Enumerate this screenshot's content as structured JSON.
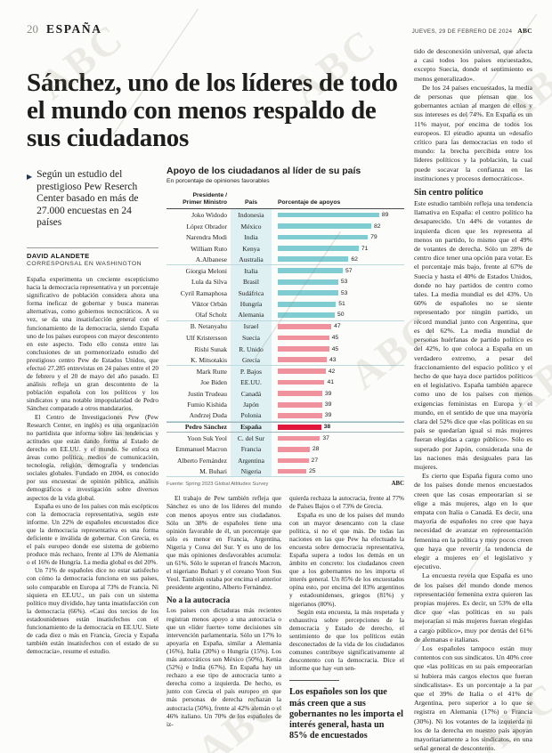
{
  "watermark": "ABC",
  "header": {
    "page_number": "20",
    "section": "ESPAÑA",
    "date": "JUEVES, 29 DE FEBRERO DE 2024",
    "brand": "ABC"
  },
  "article": {
    "headline": "Sánchez, uno de los líderes de todo el mundo con menos respaldo de sus ciudadanos",
    "kicker": "Según un estudio del prestigioso Pew Reserch Center basado en más de 27.000 encuestas en 24 países",
    "byline": "DAVID ALANDETE",
    "byline_role": "CORRESPONSAL EN WASHINGTON",
    "pull_quote": "Los españoles son los que más creen que a sus gobernantes no les importa el interés general, hasta un 85% de encuestados",
    "columns": [
      {
        "blocks": [
          {
            "type": "p",
            "indent": false,
            "text": "España experimenta un creciente escepticismo hacia la democracia representativa y un porcentaje significativo de población considera ahora una forma ineficaz de gobernar y busca maneras alternativas, como gobiernos tecnocráticos. A su vez, se da una insatisfacción general con el funcionamiento de la democracia, siendo España uno de los países europeos con mayor descontento en este aspecto. Todo ello consta entre las conclusiones de un pormenorizado estudio del prestigioso centro Pew de Estados Unidos, que efectuó 27.285 entrevistas en 24 países entre el 20 de febrero y el 20 de mayo del año pasado. El análisis refleja un gran descontento de la población española con los políticos y los sindicatos y una notable impopularidad de Pedro Sánchez comparado a otros mandatarios."
          },
          {
            "type": "p",
            "text": "El Centro de Investigaciones Pew (Pew Research Center, en inglés) es una organización no partidista que informa sobre las tendencias y actitudes que están dando forma al Estado de derecho en EE.UU. y el mundo. Se enfoca en áreas como política, medios de comunicación, tecnología, religión, demografía y tendencias sociales globales. Fundado en 2004, es conocido por sus encuestas de opinión pública, análisis demográficos e investigación sobre diversos aspectos de la vida global."
          },
          {
            "type": "p",
            "text": "España es uno de los países con más escépticos con la democracia representativa, según este informe. Un 22% de españoles encuestados dice que la democracia representativa es una forma deficiente e inválida de gobernar. Con Grecia, es el país europeo donde ese sistema de gobierno produce más rechazo, frente al 13% de Alemania o el 16% de Hungría. La media global es del 20%."
          },
          {
            "type": "p",
            "text": "Un 71% de españoles dice no estar satisfecho con cómo la democracia funciona en sus países, solo comparable en Europa al 73% de Francia. Ni siquiera en EE.UU., un país con un sistema político muy dividido, hay tanta insatisfacción con la democracia (66%). «Casi dos tercios de los estadounidenses están insatisfechos con el funcionamiento de la democracia en EE.UU. Siete de cada diez o más en Francia, Grecia y España también están insatisfechos con el estado de su democracia», resume el estudio."
          }
        ]
      },
      {
        "blocks": [
          {
            "type": "p",
            "text": "El trabajo de Pew también refleja que Sánchez es uno de los líderes del mundo con menos apoyos entre sus ciudadanos. Sólo un 38% de españoles tiene una opinión favorable de él, un porcentaje que sólo es menor en Francia, Argentina, Nigeria y Corea del Sur. Y es uno de los que más opiniones desfavorables acumula: un 61%. Sólo le superan el francés Macron, el nigeriano Buhari y el coreano Yoon Sus Yeol. También estaba por encima el anterior presidente argentino, Alberto Fernández."
          },
          {
            "type": "h",
            "text": "No a la autocracia"
          },
          {
            "type": "p",
            "indent": false,
            "text": "Los países con dictaduras más recientes registran menos apoyo a una autocracia o que un «líder fuerte» tome decisiones sin intervención parlamentaria. Sólo un 17% lo apoyaría en España, similar a Alemania (16%), Italia (20%) o Hungría (15%). Los más autocráticos son México (50%), Kenia (52%) e India (67%). En España hay un rechazo a ese tipo de autocracia tanto a derecha como a izquierda. De hecho, es junto con Grecia el país europeo en que más personas de derecha rechazan la autocracia (50%), frente al 42% alemán o el 46% italiano. Un 70% de los españoles de iz-"
          }
        ]
      },
      {
        "blocks": [
          {
            "type": "p",
            "indent": false,
            "text": "quierda rechaza la autocracia, frente al 77% de Países Bajos o el 73% de Grecia."
          },
          {
            "type": "p",
            "text": "España es uno de los países del mundo con un mayor desencanto con la clase política, si no el que más. De todas las naciones en las que Pew ha efectuado la encuesta sobre democracia representativa, España supera a todos los demás en un ámbito en concreto: los ciudadanos creen que a los gobernantes no les importa el interés general. Un 85% de los encuestados opina esto, por encima del 83% argentinos y estadounidenses, griegos (81%) y nigerianos (80%)."
          },
          {
            "type": "p",
            "text": "Según esta encuesta, la más respetada y exhaustiva sobre percepciones de la democracia y Estado de derecho, el sentimiento de que los políticos están desconectados de la vida de los ciudadanos comunes contribuye significativamente al descontento con la democracia. Dice el informe que hay «un sen-"
          }
        ]
      },
      {
        "blocks": [
          {
            "type": "p",
            "indent": false,
            "text": "tido de desconexión universal, que afecta a casi todos los países encuestados, excepto Suecia, donde el sentimiento es menos generalizado»."
          },
          {
            "type": "p",
            "text": "De los 24 países encuestados, la media de personas que piensan que los gobernantes actúan al margen de ellos y sus intereses es del 74%. En España es un 11% mayor, por encima de todos los europeos. El estudio apunta un «desafío crítico para las democracias en todo el mundo: la brecha percibida entre los líderes políticos y la población, la cual puede socavar la confianza en las instituciones y procesos democráticos»."
          },
          {
            "type": "h",
            "text": "Sin centro político"
          },
          {
            "type": "p",
            "indent": false,
            "text": "Este estudio también refleja una tendencia llamativa en España: el centro político ha desaparecido. Un 44% de votantes de izquierda dicen que les representa al menos un partido, lo mismo que el 49% de votantes de derecha. Sólo un 28% de centro dice tener una opción para votar. Es el porcentaje más bajo, frente al 67% de Suecia y hasta el 40% de Estados Unidos, donde no hay partidos de centro como tales. La media mundial es del 43%. Un 60% de españoles no se siente representado por ningún partido, un récord mundial junto con Argentina, que es del 62%. La media mundial de personas huérfanas de partido político es del 42%, lo que coloca a España en un verdadero extremo, a pesar del fraccionamiento del espacio político y el hecho de que haya doce partidos políticos en el legislativo. España también aparece como uno de los países con menos exigencias feministas en Europa y el mundo, en el sentido de que una mayoría clara del 52% dice que «las políticas en su país se quedarían igual si más mujeres fueran elegidas a cargo público». Sólo es superado por Japón, considerada una de las naciones más desiguales para las mujeres."
          },
          {
            "type": "p",
            "text": "Es cierto que España figura como uno de los países donde menos encuestados creen que las cosas empeorarían si se elige a más mujeres, algo en lo que empata con Italia o Canadá. Es decir, una mayoría de españoles no cree que haya necesidad de avanzar en representación femenina en la política y muy pocos creen que haya que revertir la tendencia de elegir a mujeres en el legislativo y ejecutivo."
          },
          {
            "type": "p",
            "text": "La encuesta revela que España es uno de los países del mundo donde menos representación femenina extra quieren las propias mujeres. Es decir, un 53% de ella dice que «las políticas en su país mejorarían si más mujeres fueran elegidas a cargo público», muy por detrás del 61% de alemanas e italianas."
          },
          {
            "type": "p",
            "text": "Los españoles tampoco están muy contentos con sus sindicatos. Un 40% cree que «las políticas en su país empeorarían si hubiera más cargos electos que fueran sindicalistas». Es un porcentaje a la par que el 39% de Italia o el 41% de Argentina, pero superior a lo que se registra en Alemania (17%) o Francia (30%). Ni los votantes de la izquierda ni los de la derecha en nuestro país apoyan mayoritariamente a los sindicatos, en una señal general de descontento."
          }
        ]
      }
    ]
  },
  "colors": {
    "bar_teal": "#7fccd3",
    "bar_pink": "#f0929e",
    "bar_red": "#e0173a",
    "country_band": "#def0f2",
    "separator": "#bcd9dd"
  },
  "chart_data": {
    "type": "bar",
    "title": "Apoyo de los ciudadanos al líder de su país",
    "subtitle": "En porcentaje de opiniones favorables",
    "col_headers": [
      "Presidente /\nPrimer Ministro",
      "País",
      "Porcentaje de apoyos"
    ],
    "source": "Fuente: Spring 2023 Global Attitudes Survey",
    "credit": "ABC",
    "xlim": [
      0,
      100
    ],
    "categories": [
      "Indonesia",
      "México",
      "India",
      "Kenya",
      "Australia",
      "Italia",
      "Brasil",
      "Sudáfrica",
      "Hungría",
      "Alemania",
      "Israel",
      "Suecia",
      "R. Unido",
      "Grecia",
      "P. Bajos",
      "EE.UU.",
      "Canadá",
      "Japón",
      "Polonia",
      "España",
      "C. del Sur",
      "Francia",
      "Argentina",
      "Nigeria"
    ],
    "values": [
      89,
      82,
      79,
      71,
      62,
      57,
      53,
      53,
      51,
      50,
      47,
      45,
      45,
      43,
      42,
      41,
      39,
      39,
      39,
      38,
      37,
      28,
      27,
      25
    ],
    "rows": [
      {
        "leader": "Joko Widodo",
        "country": "Indonesia",
        "value": 89,
        "color": "teal"
      },
      {
        "leader": "López Obrador",
        "country": "México",
        "value": 82,
        "color": "teal"
      },
      {
        "leader": "Narendra Modi",
        "country": "India",
        "value": 79,
        "color": "teal"
      },
      {
        "leader": "William Ruto",
        "country": "Kenya",
        "value": 71,
        "color": "teal"
      },
      {
        "leader": "A.Albanese",
        "country": "Australia",
        "value": 62,
        "color": "teal",
        "group_end": true
      },
      {
        "leader": "Giorgia Meloni",
        "country": "Italia",
        "value": 57,
        "color": "teal"
      },
      {
        "leader": "Lula da Silva",
        "country": "Brasil",
        "value": 53,
        "color": "teal"
      },
      {
        "leader": "Cyril Ramaphosa",
        "country": "Sudáfrica",
        "value": 53,
        "color": "teal"
      },
      {
        "leader": "Viktor Orbán",
        "country": "Hungría",
        "value": 51,
        "color": "teal"
      },
      {
        "leader": "Olaf Scholz",
        "country": "Alemania",
        "value": 50,
        "color": "teal",
        "group_end": true
      },
      {
        "leader": "B. Netanyahu",
        "country": "Israel",
        "value": 47,
        "color": "pink"
      },
      {
        "leader": "Ulf Kristersson",
        "country": "Suecia",
        "value": 45,
        "color": "pink"
      },
      {
        "leader": "Rishi Sunak",
        "country": "R. Unido",
        "value": 45,
        "color": "pink"
      },
      {
        "leader": "K. Mitsotakis",
        "country": "Grecia",
        "value": 43,
        "color": "pink",
        "group_end": true
      },
      {
        "leader": "Mark Rutte",
        "country": "P. Bajos",
        "value": 42,
        "color": "pink"
      },
      {
        "leader": "Joe Biden",
        "country": "EE.UU.",
        "value": 41,
        "color": "pink"
      },
      {
        "leader": "Justin Trudeau",
        "country": "Canadá",
        "value": 39,
        "color": "pink"
      },
      {
        "leader": "Fumio Kishida",
        "country": "Japón",
        "value": 39,
        "color": "pink"
      },
      {
        "leader": "Andrzej Duda",
        "country": "Polonia",
        "value": 39,
        "color": "pink",
        "group_end": true
      },
      {
        "leader": "Pedro Sánchez",
        "country": "España",
        "value": 38,
        "color": "red",
        "highlight": true
      },
      {
        "leader": "Yoon Suk Yeol",
        "country": "C. del Sur",
        "value": 37,
        "color": "pink"
      },
      {
        "leader": "Emmanuel Macron",
        "country": "Francia",
        "value": 28,
        "color": "pink"
      },
      {
        "leader": "Alberto Fernández",
        "country": "Argentina",
        "value": 27,
        "color": "pink"
      },
      {
        "leader": "M. Buhari",
        "country": "Nigeria",
        "value": 25,
        "color": "pink",
        "group_end": true
      }
    ]
  }
}
